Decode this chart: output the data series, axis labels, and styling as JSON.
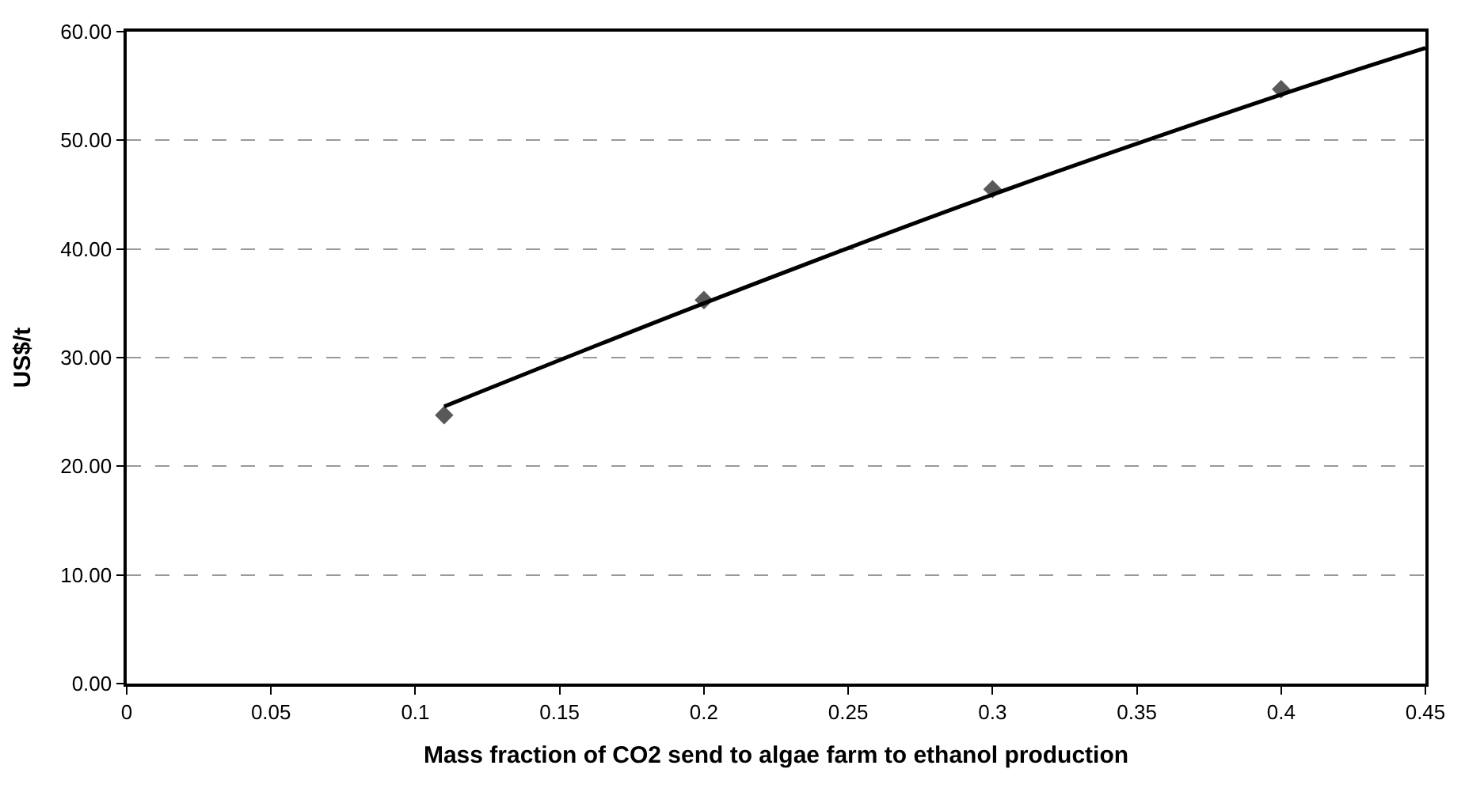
{
  "chart_data": {
    "type": "scatter",
    "xlabel": "Mass fraction of CO2 send to algae farm to ethanol production",
    "ylabel": "US$/t",
    "xlim": [
      0,
      0.45
    ],
    "xticks": [
      0,
      0.05,
      0.1,
      0.15,
      0.2,
      0.25,
      0.3,
      0.35,
      0.4,
      0.45
    ],
    "ylim": [
      0,
      60
    ],
    "yticks": [
      {
        "value": 0,
        "label": "0.00"
      },
      {
        "value": 10,
        "label": "10.00"
      },
      {
        "value": 20,
        "label": "20.00"
      },
      {
        "value": 30,
        "label": "30.00"
      },
      {
        "value": 40,
        "label": "40.00"
      },
      {
        "value": 50,
        "label": "50.00"
      },
      {
        "value": 60,
        "label": "60.00"
      }
    ],
    "grid": "y",
    "series": [
      {
        "color": "#595959",
        "marker": "diamond",
        "x": [
          0.11,
          0.2,
          0.3,
          0.4
        ],
        "values": [
          24.7,
          35.3,
          45.5,
          54.7
        ]
      },
      {
        "type": "line",
        "color": "#000000",
        "marker": "none",
        "line_style": "solid",
        "x": [
          0.11,
          0.2,
          0.3,
          0.4,
          0.45
        ],
        "values": [
          25.5,
          35.0,
          45.0,
          54.2,
          58.5
        ]
      }
    ]
  }
}
